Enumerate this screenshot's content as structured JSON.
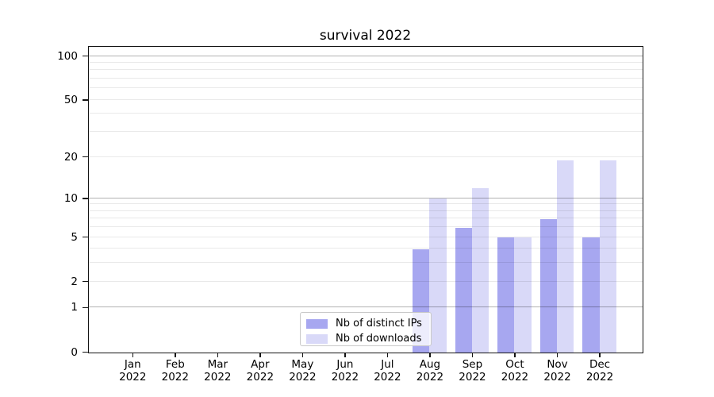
{
  "title": "survival 2022",
  "chart_data": {
    "type": "bar",
    "title": "survival 2022",
    "categories": [
      "Jan 2022",
      "Feb 2022",
      "Mar 2022",
      "Apr 2022",
      "May 2022",
      "Jun 2022",
      "Jul 2022",
      "Aug 2022",
      "Sep 2022",
      "Oct 2022",
      "Nov 2022",
      "Dec 2022"
    ],
    "series": [
      {
        "name": "Nb of distinct IPs",
        "key": "distinct-ips",
        "color": "#a7a7f0",
        "values": [
          0,
          0,
          0,
          0,
          0,
          0,
          0,
          4,
          6,
          5,
          7,
          5
        ]
      },
      {
        "name": "Nb of downloads",
        "key": "downloads",
        "color": "#d9d9f8",
        "values": [
          0,
          0,
          0,
          0,
          0,
          0,
          0,
          10,
          12,
          5,
          19,
          19
        ]
      }
    ],
    "xlabel": "",
    "ylabel": "",
    "yscale": "log1p",
    "ylim": [
      0,
      116
    ],
    "y_tick_labels": [
      0,
      1,
      2,
      5,
      10,
      20,
      50,
      100
    ],
    "y_major_gridlines": [
      1,
      10,
      100
    ],
    "y_minor_gridlines": [
      2,
      3,
      4,
      5,
      6,
      7,
      8,
      9,
      20,
      30,
      40,
      50,
      60,
      70,
      80,
      90
    ],
    "grid": true,
    "legend_position": "lower center"
  },
  "colors": {
    "bar_dark": "#a7a7f0",
    "bar_light": "#d9d9f8",
    "spine": "#141414",
    "grid_major": "rgba(0,0,0,0.30)",
    "grid_minor": "rgba(0,0,0,0.085)",
    "legend_border": "#c9c9c9",
    "background": "#ffffff"
  }
}
